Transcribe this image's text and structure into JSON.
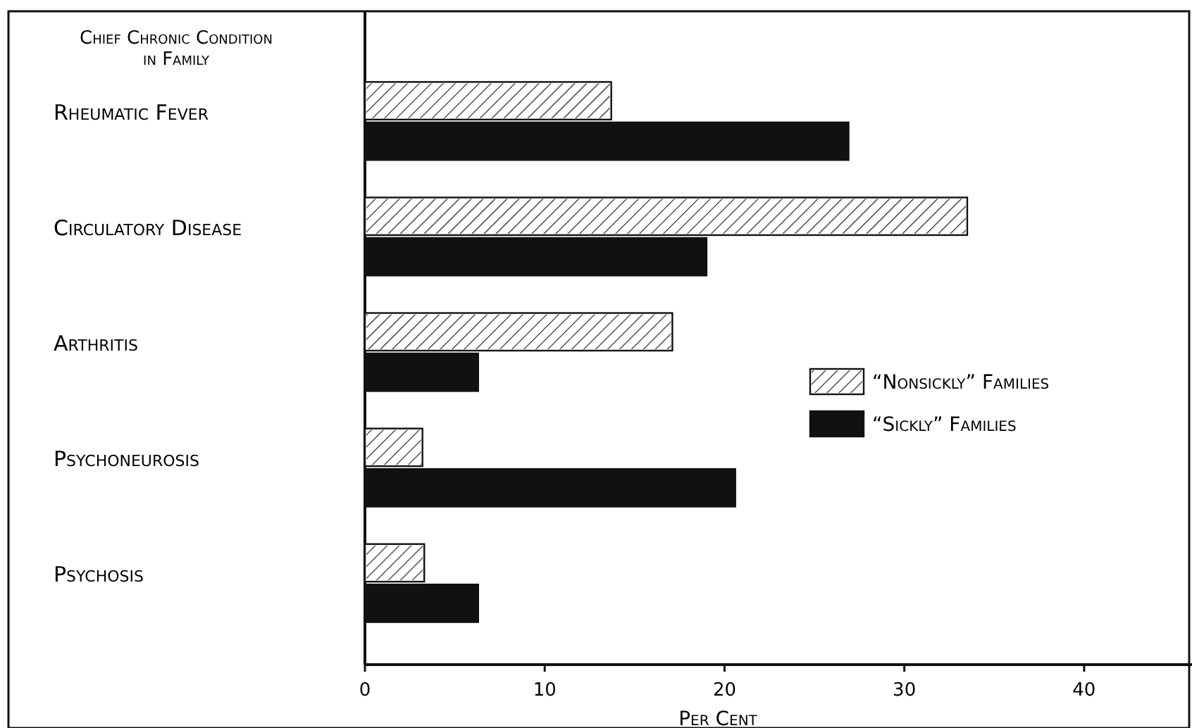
{
  "chart_data": {
    "type": "bar",
    "orientation": "horizontal",
    "ylabel": "Chief Chronic Condition in Family",
    "xlabel": "Per Cent",
    "categories": [
      "Rheumatic Fever",
      "Circulatory Disease",
      "Arthritis",
      "Psychoneurosis",
      "Psychosis"
    ],
    "series": [
      {
        "name": "“Nonsickly” Families",
        "color": "#ffffff",
        "values": [
          13.7,
          33.5,
          17.1,
          3.2,
          3.3
        ]
      },
      {
        "name": "“Sickly” Families",
        "color": "#111111",
        "values": [
          26.9,
          19,
          6.3,
          20.6,
          6.3
        ]
      }
    ],
    "xlim": [
      0,
      46
    ],
    "xticks": [
      0,
      10,
      20,
      30,
      40
    ],
    "legend": "right",
    "grid": false
  }
}
